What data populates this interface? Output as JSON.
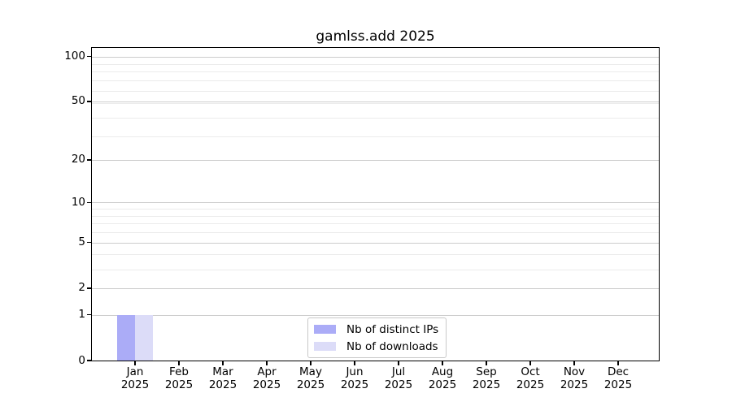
{
  "chart_data": {
    "type": "bar",
    "title": "gamlss.add 2025",
    "categories": [
      "Jan",
      "Feb",
      "Mar",
      "Apr",
      "May",
      "Jun",
      "Jul",
      "Aug",
      "Sep",
      "Oct",
      "Nov",
      "Dec"
    ],
    "year_label": "2025",
    "series": [
      {
        "name": "Nb of distinct IPs",
        "color": "#abacf7",
        "values": [
          1,
          0,
          0,
          0,
          0,
          0,
          0,
          0,
          0,
          0,
          0,
          0
        ]
      },
      {
        "name": "Nb of downloads",
        "color": "#dcdcf8",
        "values": [
          1,
          0,
          0,
          0,
          0,
          0,
          0,
          0,
          0,
          0,
          0,
          0
        ]
      }
    ],
    "yscale": "log1p",
    "ylim": [
      0,
      114
    ],
    "yticks": [
      0,
      1,
      2,
      5,
      10,
      20,
      50,
      100
    ],
    "minor_yticks": [
      3,
      4,
      6,
      7,
      8,
      9,
      29,
      39,
      49,
      59,
      69,
      79,
      89
    ],
    "xlabel": "",
    "ylabel": "",
    "grid": "horizontal",
    "legend_position": "lower center"
  },
  "colors": {
    "background": "#ffffff",
    "axis": "#000000",
    "grid_major": "#cccccc",
    "grid_minor": "#ebebeb",
    "legend_border": "#c9c9c9",
    "text": "#000000"
  }
}
